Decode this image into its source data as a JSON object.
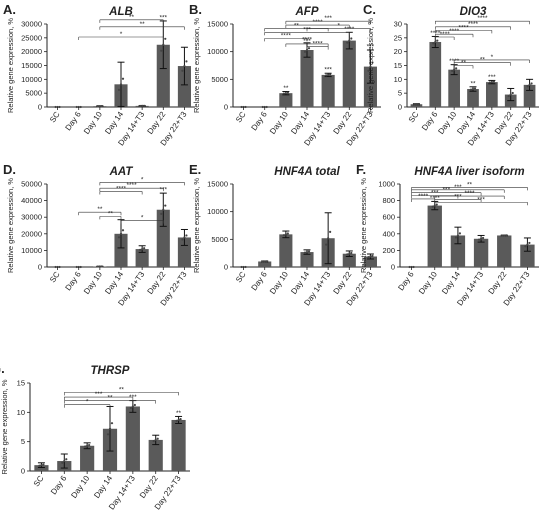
{
  "figure": {
    "ylabel": "Relative gene expression, %",
    "bar_color": "#5a5a5a",
    "point_color": "#444444"
  },
  "chart_data": [
    {
      "panel": "A.",
      "type": "bar",
      "title": "ALB",
      "categories": [
        "SC",
        "Day 6",
        "Day 10",
        "Day 14",
        "Day 14+T3",
        "Day 22",
        "Day 22+T3"
      ],
      "values": [
        0,
        0,
        300,
        8200,
        400,
        22500,
        14800
      ],
      "errors": [
        0,
        0,
        150,
        8000,
        150,
        8600,
        6800
      ],
      "ylim": [
        0,
        30000
      ],
      "yticks": [
        0,
        5000,
        10000,
        15000,
        20000,
        25000,
        30000
      ],
      "sig_marks": [
        "",
        "",
        "",
        "",
        "",
        "***",
        ""
      ],
      "comparisons": [
        {
          "from": 2,
          "to": 5,
          "label": "**",
          "y": 31500
        },
        {
          "from": 2,
          "to": 6,
          "label": "**",
          "y": 29000
        },
        {
          "from": 1,
          "to": 5,
          "label": "*",
          "y": 25300
        }
      ]
    },
    {
      "panel": "B.",
      "type": "bar",
      "title": "AFP",
      "categories": [
        "SC",
        "Day 6",
        "Day 10",
        "Day 14",
        "Day 14+T3",
        "Day 22",
        "Day 22+T3"
      ],
      "values": [
        0,
        0,
        2500,
        10300,
        5800,
        12000,
        7300
      ],
      "errors": [
        0,
        0,
        300,
        1300,
        300,
        1500,
        3000
      ],
      "ylim": [
        0,
        15000
      ],
      "yticks": [
        0,
        5000,
        10000,
        15000
      ],
      "sig_marks": [
        "",
        "",
        "**",
        "****",
        "***",
        "****",
        "***"
      ],
      "comparisons": [
        {
          "from": 2,
          "to": 6,
          "label": "***",
          "y": 15500
        },
        {
          "from": 2,
          "to": 5,
          "label": "****",
          "y": 14800
        },
        {
          "from": 1,
          "to": 4,
          "label": "**",
          "y": 14200
        },
        {
          "from": 3,
          "to": 6,
          "label": "*",
          "y": 14200
        },
        {
          "from": 1,
          "to": 5,
          "label": "***",
          "y": 13500
        },
        {
          "from": 1,
          "to": 3,
          "label": "****",
          "y": 12400
        },
        {
          "from": 2,
          "to": 4,
          "label": "***",
          "y": 11400
        },
        {
          "from": 3,
          "to": 4,
          "label": "****",
          "y": 10900
        }
      ]
    },
    {
      "panel": "C.",
      "type": "bar",
      "title": "DIO3",
      "categories": [
        "SC",
        "Day 6",
        "Day 10",
        "Day 14",
        "Day 14+T3",
        "Day 22",
        "Day 22+T3"
      ],
      "values": [
        1,
        23.5,
        13.5,
        6.5,
        9,
        4.5,
        8
      ],
      "errors": [
        0.2,
        2,
        1.8,
        0.8,
        0.6,
        2.2,
        2
      ],
      "ylim": [
        0,
        30
      ],
      "yticks": [
        0,
        5,
        10,
        15,
        20,
        25,
        30
      ],
      "sig_marks": [
        "",
        "****",
        "****",
        "**",
        "***",
        "",
        ""
      ],
      "comparisons": [
        {
          "from": 1,
          "to": 6,
          "label": "****",
          "y": 31000
        },
        {
          "from": 1,
          "to": 5,
          "label": "****",
          "y": 29000
        },
        {
          "from": 1,
          "to": 4,
          "label": "****",
          "y": 27700
        },
        {
          "from": 1,
          "to": 3,
          "label": "****",
          "y": 26300
        },
        {
          "from": 1,
          "to": 2,
          "label": "****",
          "y": 25300
        },
        {
          "from": 2,
          "to": 6,
          "label": "*",
          "y": 17000
        },
        {
          "from": 2,
          "to": 5,
          "label": "**",
          "y": 16000
        },
        {
          "from": 2,
          "to": 3,
          "label": "**",
          "y": 15000
        }
      ]
    },
    {
      "panel": "D.",
      "type": "bar",
      "title": "AAT",
      "categories": [
        "SC",
        "Day 6",
        "Day 10",
        "Day 14",
        "Day 14+T3",
        "Day 22",
        "Day 22+T3"
      ],
      "values": [
        0,
        0,
        300,
        20000,
        10800,
        34500,
        17800
      ],
      "errors": [
        0,
        0,
        150,
        8500,
        2000,
        10000,
        4800
      ],
      "ylim": [
        0,
        50000
      ],
      "yticks": [
        0,
        10000,
        20000,
        30000,
        40000,
        50000
      ],
      "sig_marks": [
        "",
        "",
        "",
        "",
        "",
        "***",
        ""
      ],
      "comparisons": [
        {
          "from": 2,
          "to": 6,
          "label": "*",
          "y": 51000
        },
        {
          "from": 2,
          "to": 5,
          "label": "****",
          "y": 47500
        },
        {
          "from": 2,
          "to": 4,
          "label": "****",
          "y": 45500
        },
        {
          "from": 1,
          "to": 3,
          "label": "**",
          "y": 33000
        },
        {
          "from": 2,
          "to": 3,
          "label": "**",
          "y": 30500
        },
        {
          "from": 3,
          "to": 5,
          "label": "*",
          "y": 28000
        }
      ]
    },
    {
      "panel": "E.",
      "type": "bar",
      "title": "HNF4A total",
      "categories": [
        "SC",
        "Day 6",
        "Day 10",
        "Day 14",
        "Day 14+T3",
        "Day 22",
        "Day 22+T3"
      ],
      "values": [
        0,
        1000,
        5900,
        2700,
        5200,
        2400,
        1900
      ],
      "errors": [
        0,
        100,
        600,
        400,
        4600,
        500,
        450
      ],
      "ylim": [
        0,
        15000
      ],
      "yticks": [
        0,
        5000,
        10000,
        15000
      ],
      "sig_marks": [
        "",
        "",
        "",
        "",
        "",
        "",
        ""
      ],
      "comparisons": []
    },
    {
      "panel": "F.",
      "type": "bar",
      "title": "HNF4A liver isoform",
      "categories": [
        "Day 6",
        "Day 10",
        "Day 14",
        "Day 14+T3",
        "Day 22",
        "Day 22+T3"
      ],
      "values": [
        0,
        740,
        380,
        340,
        380,
        270
      ],
      "errors": [
        0,
        50,
        100,
        40,
        5,
        80
      ],
      "ylim": [
        0,
        1000
      ],
      "yticks": [
        0,
        200,
        400,
        600,
        800,
        1000
      ],
      "sig_marks": [
        "",
        "****",
        "",
        "",
        "",
        ""
      ],
      "comparisons": [
        {
          "from": 0,
          "to": 5,
          "label": "**",
          "y": 960
        },
        {
          "from": 0,
          "to": 4,
          "label": "***",
          "y": 930
        },
        {
          "from": 0,
          "to": 3,
          "label": "***",
          "y": 895
        },
        {
          "from": 0,
          "to": 2,
          "label": "***",
          "y": 860
        },
        {
          "from": 0,
          "to": 1,
          "label": "****",
          "y": 820
        },
        {
          "from": 1,
          "to": 4,
          "label": "****",
          "y": 855
        },
        {
          "from": 1,
          "to": 3,
          "label": "***",
          "y": 815
        },
        {
          "from": 1,
          "to": 5,
          "label": "***",
          "y": 780
        }
      ]
    },
    {
      "panel": "G.",
      "type": "bar",
      "title": "THRSP",
      "categories": [
        "SC",
        "Day 6",
        "Day 10",
        "Day 14",
        "Day 14+T3",
        "Day 22",
        "Day 22+T3"
      ],
      "values": [
        1,
        1.7,
        4.3,
        7.2,
        11,
        5.3,
        8.7
      ],
      "errors": [
        0.4,
        1.2,
        0.5,
        3.8,
        1,
        0.8,
        0.6
      ],
      "ylim": [
        0,
        15
      ],
      "yticks": [
        0,
        5,
        10,
        15
      ],
      "sig_marks": [
        "",
        "",
        "",
        "",
        "***",
        "",
        "**"
      ],
      "comparisons": [
        {
          "from": 1,
          "to": 6,
          "label": "**",
          "y": 13400
        },
        {
          "from": 1,
          "to": 4,
          "label": "***",
          "y": 12600
        },
        {
          "from": 1,
          "to": 5,
          "label": "**",
          "y": 12000
        },
        {
          "from": 1,
          "to": 3,
          "label": "*",
          "y": 11300
        }
      ]
    }
  ]
}
